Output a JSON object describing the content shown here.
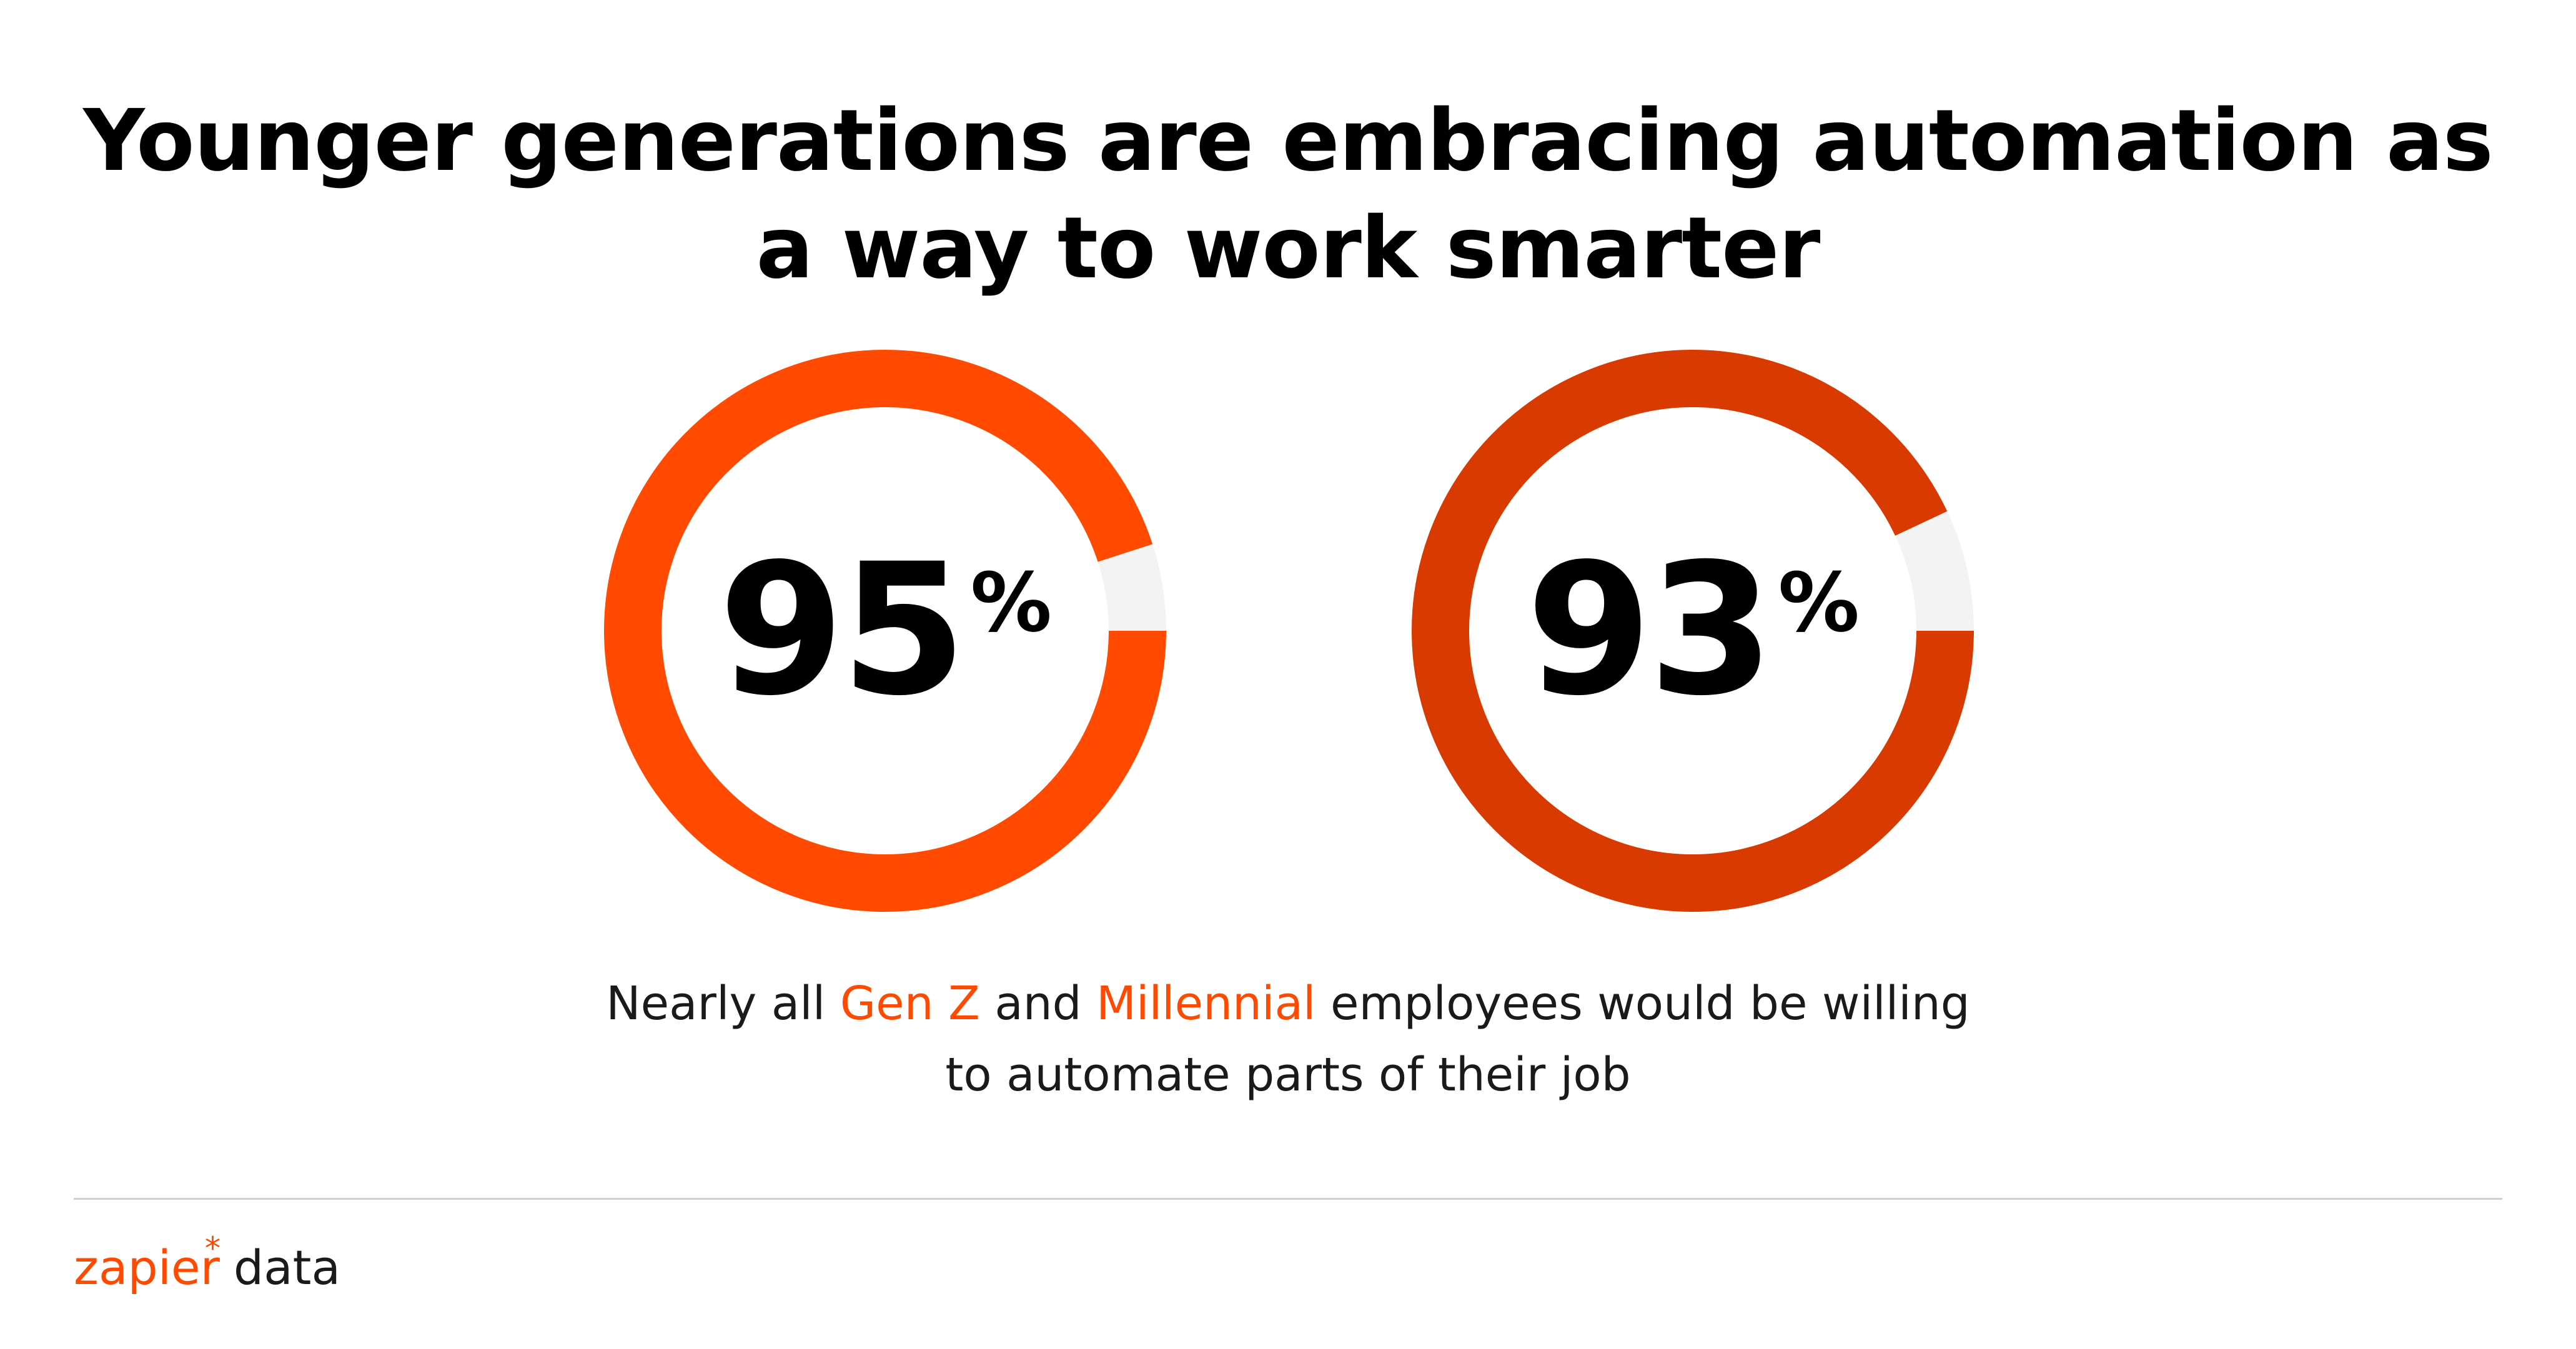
{
  "chart_data": {
    "type": "pie",
    "title": "Younger generations are embracing automation as a way to work smarter",
    "title_lines": [
      "Younger generations are embracing automation as",
      "a way to work smarter"
    ],
    "series": [
      {
        "name": "Gen Z",
        "value": 95,
        "remainder": 5,
        "label": "95",
        "unit": "%",
        "color": "#ff4a00"
      },
      {
        "name": "Millennial",
        "value": 93,
        "remainder": 7,
        "label": "93",
        "unit": "%",
        "color": "#d83a00"
      }
    ],
    "remainder_color": "#f3f3f3",
    "caption": {
      "line1_a": "Nearly all ",
      "gen_z": "Gen Z",
      "line1_b": " and ",
      "millennial": "Millennial",
      "line1_c": " employees would be willing",
      "line2": "to automate parts of their job"
    },
    "accent_color": "#ff4a00"
  },
  "footer": {
    "logo_text": "zapier",
    "logo_star": "*",
    "data_text": "data"
  }
}
